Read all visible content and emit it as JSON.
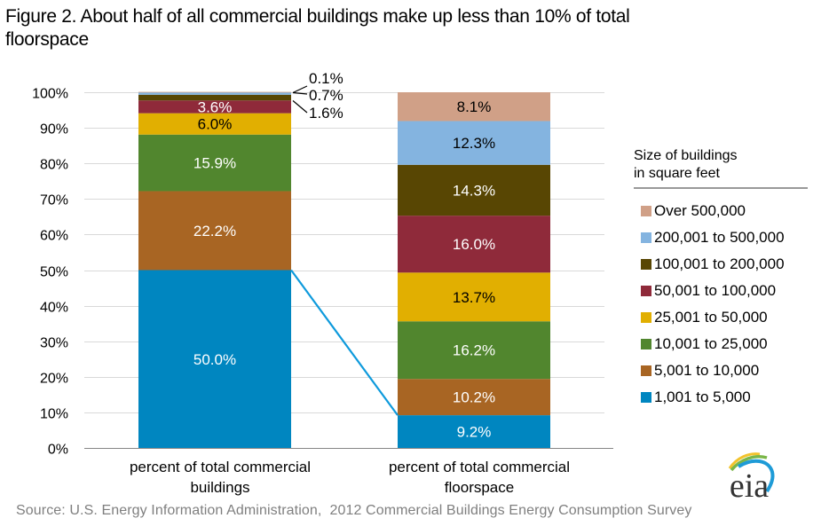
{
  "title": "Figure 2. About half of all commercial buildings make up less than 10% of total floorspace",
  "source": "Source: U.S. Energy Information Administration,  2012 Commercial Buildings Energy Consumption Survey",
  "logo": {
    "text": "eia",
    "icon": "eia-logo-icon"
  },
  "chart_data": {
    "type": "bar",
    "stacked": true,
    "title": "Figure 2. About half of all commercial buildings make up less than 10% of total floorspace",
    "xlabel": "",
    "ylabel": "",
    "ylim": [
      0,
      100
    ],
    "yticks": [
      "0%",
      "10%",
      "20%",
      "30%",
      "40%",
      "50%",
      "60%",
      "70%",
      "80%",
      "90%",
      "100%"
    ],
    "grid": true,
    "legend_title": "Size of buildings in square feet",
    "legend_title_lines": [
      "Size of buildings",
      "in square feet"
    ],
    "legend_position": "right",
    "categories": [
      "percent of total commercial buildings",
      "percent of total commercial floorspace"
    ],
    "category_lines": [
      [
        "percent of total commercial",
        "buildings"
      ],
      [
        "percent of total commercial",
        "floorspace"
      ]
    ],
    "series": [
      {
        "name": "1,001 to 5,000",
        "color": "#0086C0",
        "label_color": "#ffffff",
        "values": [
          50.0,
          9.2
        ],
        "labels": [
          "50.0%",
          "9.2%"
        ]
      },
      {
        "name": "5,001 to 10,000",
        "color": "#A86523",
        "label_color": "#ffffff",
        "values": [
          22.2,
          10.2
        ],
        "labels": [
          "22.2%",
          "10.2%"
        ]
      },
      {
        "name": "10,001 to 25,000",
        "color": "#51862E",
        "label_color": "#ffffff",
        "values": [
          15.9,
          16.2
        ],
        "labels": [
          "15.9%",
          "16.2%"
        ]
      },
      {
        "name": "25,001 to 50,000",
        "color": "#E1AF01",
        "label_color": "#000000",
        "values": [
          6.0,
          13.7
        ],
        "labels": [
          "6.0%",
          "13.7%"
        ]
      },
      {
        "name": "50,001 to 100,000",
        "color": "#8F2A3A",
        "label_color": "#ffffff",
        "values": [
          3.6,
          16.0
        ],
        "labels": [
          "3.6%",
          "16.0%"
        ]
      },
      {
        "name": "100,001 to 200,000",
        "color": "#584603",
        "label_color": "#ffffff",
        "values": [
          1.6,
          14.3
        ],
        "labels": [
          "1.6%",
          "14.3%"
        ]
      },
      {
        "name": "200,001 to 500,000",
        "color": "#84B4E0",
        "label_color": "#000000",
        "values": [
          0.7,
          12.3
        ],
        "labels": [
          "0.7%",
          "12.3%"
        ]
      },
      {
        "name": "Over 500,000",
        "color": "#D0A087",
        "label_color": "#000000",
        "values": [
          0.1,
          8.1
        ],
        "labels": [
          "0.1%",
          "8.1%"
        ]
      }
    ],
    "callouts": [
      {
        "series": "Over 500,000",
        "category": 0,
        "text": "0.1%"
      },
      {
        "series": "200,001 to 500,000",
        "category": 0,
        "text": "0.7%"
      },
      {
        "series": "100,001 to 200,000",
        "category": 0,
        "text": "1.6%"
      }
    ],
    "connector": {
      "from_category": 0,
      "to_category": 1,
      "series": "1,001 to 5,000",
      "color": "#0E9ADC"
    }
  }
}
